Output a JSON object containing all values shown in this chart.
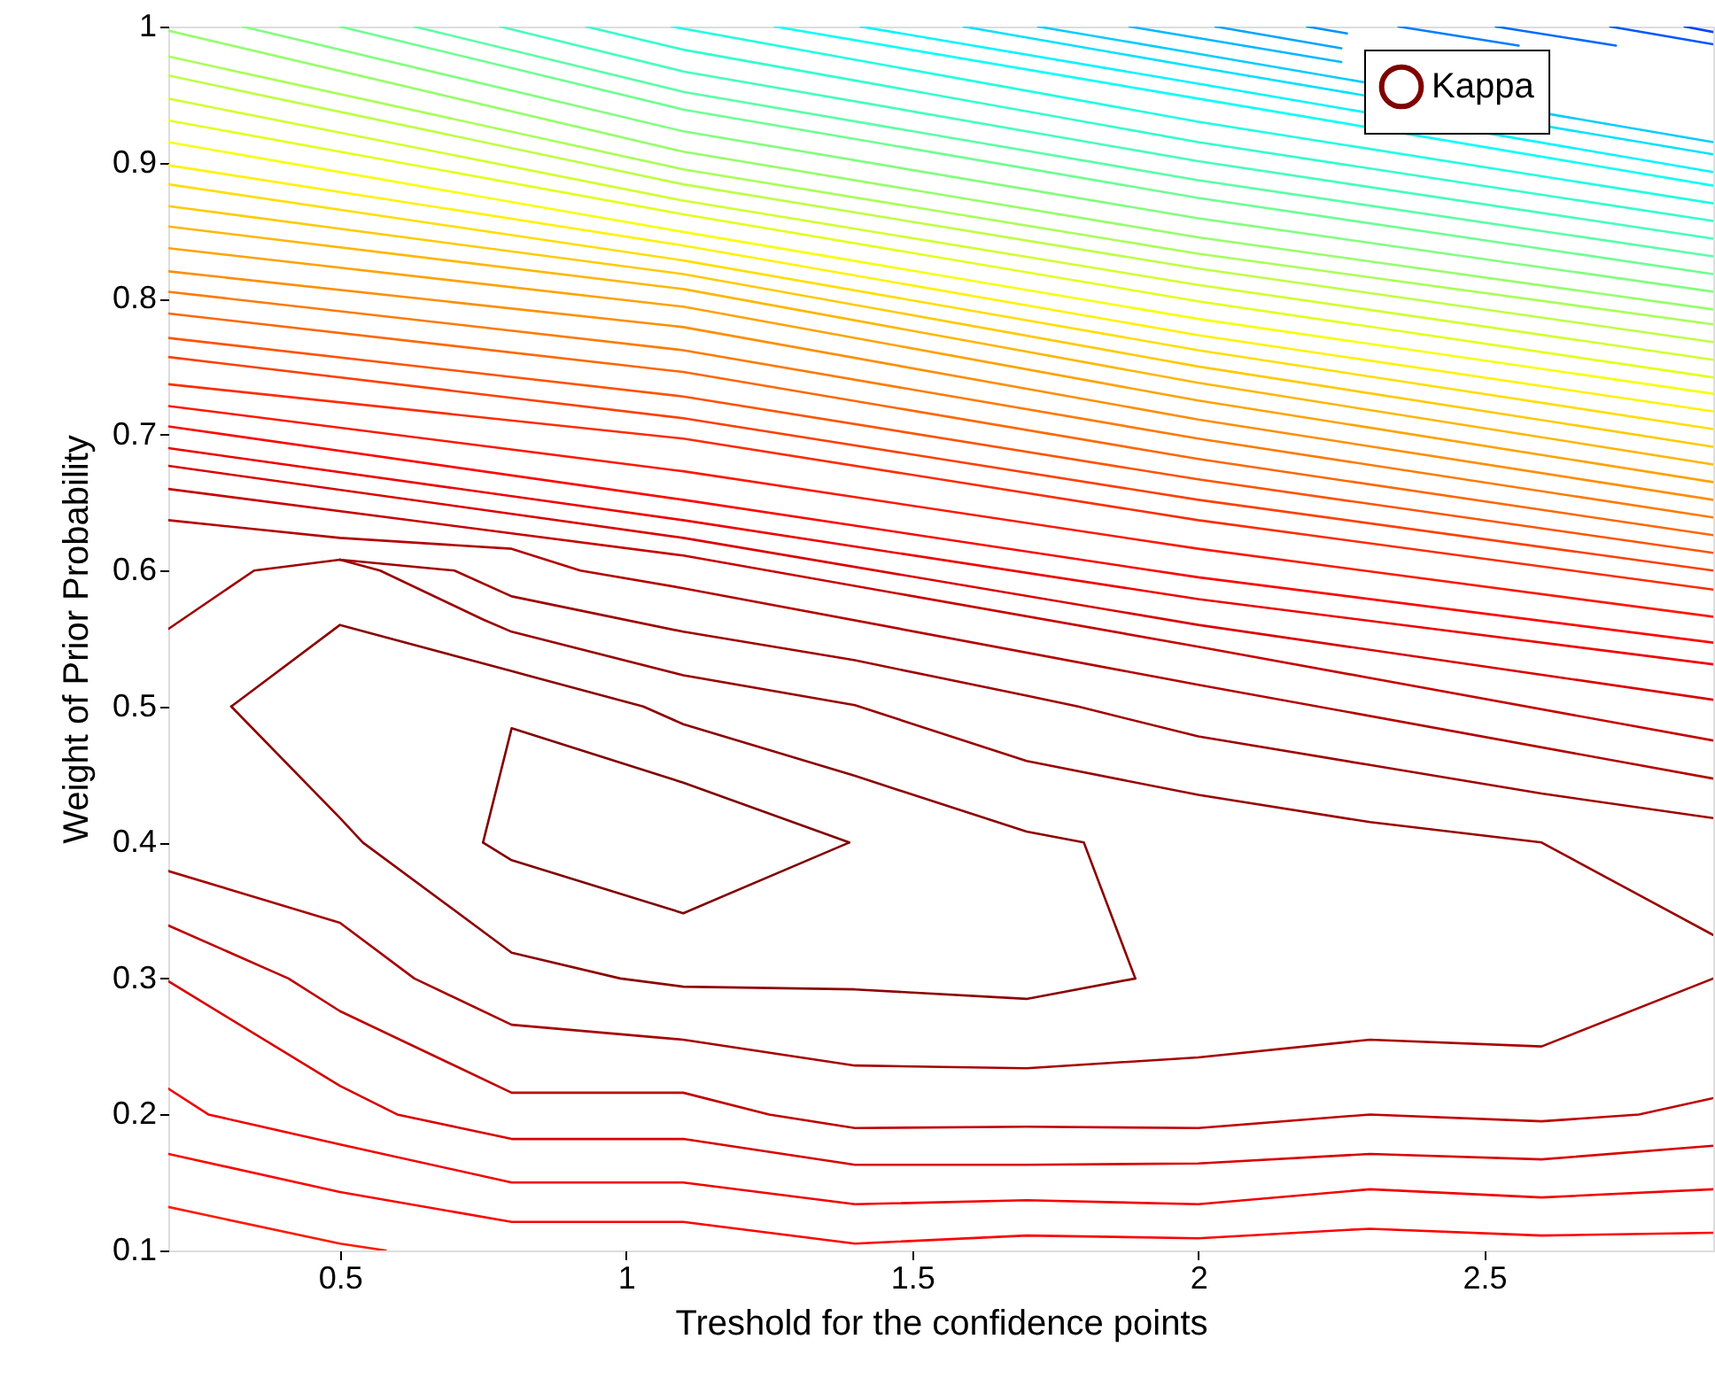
{
  "chart_data": {
    "type": "line",
    "xlabel": "Treshold for the confidence points",
    "ylabel": "Weight of Prior Probability",
    "xlim": [
      0.2,
      2.9
    ],
    "xticks": [
      0.5,
      1,
      1.5,
      2,
      2.5
    ],
    "ylim": [
      0.1,
      1
    ],
    "yticks": [
      0.1,
      0.2,
      0.3,
      0.4,
      0.5,
      0.6,
      0.7,
      0.8,
      0.9,
      1
    ],
    "legend": "top right",
    "line_style": "solid",
    "series": [
      {
        "color": "#ff1a00",
        "x": [
          0.2,
          0.5,
          0.58
        ],
        "values": [
          0.132,
          0.105,
          0.1
        ]
      },
      {
        "color": "#ff0000",
        "x": [
          0.2,
          0.5,
          0.8,
          1.1,
          1.4,
          1.7,
          2.0,
          2.3,
          2.6,
          2.9
        ],
        "values": [
          0.171,
          0.143,
          0.121,
          0.121,
          0.105,
          0.111,
          0.109,
          0.116,
          0.111,
          0.113
        ]
      },
      {
        "color": "#f20000",
        "x": [
          0.2,
          0.27,
          0.5,
          0.8,
          1.1,
          1.4,
          1.7,
          2.0,
          2.3,
          2.6,
          2.9
        ],
        "values": [
          0.219,
          0.2,
          0.178,
          0.15,
          0.15,
          0.134,
          0.137,
          0.134,
          0.145,
          0.139,
          0.145
        ]
      },
      {
        "color": "#d90000",
        "x": [
          0.2,
          0.5,
          0.6,
          0.8,
          1.1,
          1.4,
          1.7,
          2.0,
          2.3,
          2.6,
          2.9
        ],
        "values": [
          0.298,
          0.221,
          0.2,
          0.182,
          0.182,
          0.163,
          0.163,
          0.164,
          0.171,
          0.167,
          0.177
        ]
      },
      {
        "color": "#bf0000",
        "x": [
          0.2,
          0.41,
          0.5,
          0.8,
          1.1,
          1.25,
          1.4,
          1.7,
          2.0,
          2.3,
          2.6,
          2.77,
          2.9
        ],
        "values": [
          0.339,
          0.3,
          0.276,
          0.216,
          0.216,
          0.2,
          0.19,
          0.191,
          0.19,
          0.2,
          0.195,
          0.2,
          0.212
        ]
      },
      {
        "color": "#a60000",
        "x": [
          0.2,
          0.5,
          0.63,
          0.8,
          1.1,
          1.4,
          1.7,
          2.0,
          2.3,
          2.6,
          2.9
        ],
        "values": [
          0.379,
          0.341,
          0.3,
          0.266,
          0.255,
          0.236,
          0.234,
          0.242,
          0.255,
          0.25,
          0.3
        ]
      },
      {
        "color": "#8c0000",
        "x": [
          0.31,
          0.5,
          0.8,
          1.03,
          1.1,
          1.4,
          1.7,
          1.8,
          1.89
        ],
        "values": [
          0.5,
          0.56,
          0.526,
          0.5,
          0.487,
          0.449,
          0.408,
          0.4,
          0.3
        ]
      },
      {
        "color": "#8c0000",
        "x": [
          0.31,
          0.5,
          0.54,
          0.8,
          0.99,
          1.1,
          1.4,
          1.7,
          1.89
        ],
        "values": [
          0.5,
          0.418,
          0.4,
          0.319,
          0.3,
          0.294,
          0.292,
          0.285,
          0.3
        ]
      },
      {
        "name": "Kappa",
        "color": "#800000",
        "x": [
          0.75,
          0.8,
          1.1,
          1.39
        ],
        "values": [
          0.4,
          0.484,
          0.444,
          0.4
        ]
      },
      {
        "color": "#800000",
        "x": [
          0.75,
          0.8,
          1.1,
          1.39
        ],
        "values": [
          0.4,
          0.387,
          0.348,
          0.4
        ]
      },
      {
        "color": "#990000",
        "x": [
          0.5,
          0.57,
          0.75,
          0.8,
          1.1,
          1.4,
          1.7,
          2.0,
          2.3,
          2.6,
          2.9
        ],
        "values": [
          0.608,
          0.6,
          0.564,
          0.555,
          0.523,
          0.501,
          0.46,
          0.435,
          0.415,
          0.4,
          0.332
        ]
      },
      {
        "color": "#9f0000",
        "x": [
          0.2,
          0.35,
          0.5,
          0.7,
          0.8,
          1.1,
          1.4,
          1.7,
          1.79,
          2.0,
          2.3,
          2.6,
          2.9
        ],
        "values": [
          0.557,
          0.6,
          0.608,
          0.6,
          0.581,
          0.555,
          0.534,
          0.508,
          0.5,
          0.478,
          0.457,
          0.436,
          0.418
        ]
      },
      {
        "color": "#b30000",
        "x": [
          0.2,
          0.5,
          0.8,
          0.92,
          1.1,
          2.0,
          2.9
        ],
        "values": [
          0.637,
          0.624,
          0.616,
          0.6,
          0.587,
          0.516,
          0.447
        ]
      },
      {
        "color": "#c60000",
        "x": [
          0.2,
          1.1,
          2.0,
          2.9
        ],
        "values": [
          0.66,
          0.611,
          0.544,
          0.475
        ]
      },
      {
        "color": "#da0000",
        "x": [
          0.2,
          1.1,
          2.0,
          2.9
        ],
        "values": [
          0.677,
          0.624,
          0.56,
          0.505
        ]
      },
      {
        "color": "#ee0000",
        "x": [
          0.2,
          1.1,
          2.0,
          2.9
        ],
        "values": [
          0.69,
          0.637,
          0.579,
          0.531
        ]
      },
      {
        "color": "#ff0300",
        "x": [
          0.2,
          1.1,
          2.0,
          2.9
        ],
        "values": [
          0.706,
          0.652,
          0.595,
          0.547
        ]
      },
      {
        "color": "#ff1700",
        "x": [
          0.2,
          1.1,
          2.0,
          2.9
        ],
        "values": [
          0.721,
          0.673,
          0.616,
          0.566
        ]
      },
      {
        "color": "#ff2b00",
        "x": [
          0.2,
          1.1,
          2.0,
          2.9
        ],
        "values": [
          0.737,
          0.697,
          0.637,
          0.586
        ]
      },
      {
        "color": "#ff3f00",
        "x": [
          0.2,
          1.1,
          2.0,
          2.9
        ],
        "values": [
          0.757,
          0.712,
          0.652,
          0.6
        ]
      },
      {
        "color": "#ff5300",
        "x": [
          0.2,
          1.1,
          2.0,
          2.9
        ],
        "values": [
          0.771,
          0.728,
          0.667,
          0.613
        ]
      },
      {
        "color": "#ff6700",
        "x": [
          0.2,
          1.1,
          2.0,
          2.9
        ],
        "values": [
          0.789,
          0.746,
          0.682,
          0.626
        ]
      },
      {
        "color": "#ff7a00",
        "x": [
          0.2,
          1.1,
          2.0,
          2.9
        ],
        "values": [
          0.805,
          0.762,
          0.697,
          0.639
        ]
      },
      {
        "color": "#ff8e00",
        "x": [
          0.2,
          1.1,
          2.0,
          2.9
        ],
        "values": [
          0.82,
          0.779,
          0.711,
          0.652
        ]
      },
      {
        "color": "#ffa200",
        "x": [
          0.2,
          1.1,
          2.0,
          2.9
        ],
        "values": [
          0.837,
          0.794,
          0.725,
          0.665
        ]
      },
      {
        "color": "#ffb600",
        "x": [
          0.2,
          1.1,
          2.0,
          2.9
        ],
        "values": [
          0.853,
          0.807,
          0.738,
          0.678
        ]
      },
      {
        "color": "#ffca00",
        "x": [
          0.2,
          1.1,
          2.0,
          2.9
        ],
        "values": [
          0.868,
          0.818,
          0.75,
          0.691
        ]
      },
      {
        "color": "#ffde00",
        "x": [
          0.2,
          1.1,
          2.0,
          2.9
        ],
        "values": [
          0.884,
          0.828,
          0.762,
          0.704
        ]
      },
      {
        "color": "#fff200",
        "x": [
          0.2,
          1.1,
          2.0,
          2.9
        ],
        "values": [
          0.898,
          0.839,
          0.773,
          0.717
        ]
      },
      {
        "color": "#f8ff07",
        "x": [
          0.2,
          1.1,
          2.0,
          2.9
        ],
        "values": [
          0.915,
          0.849,
          0.785,
          0.73
        ]
      },
      {
        "color": "#e4ff1b",
        "x": [
          0.2,
          1.1,
          2.0,
          2.9
        ],
        "values": [
          0.931,
          0.862,
          0.798,
          0.742
        ]
      },
      {
        "color": "#d1ff2e",
        "x": [
          0.2,
          1.1,
          2.0,
          2.9
        ],
        "values": [
          0.947,
          0.872,
          0.81,
          0.755
        ]
      },
      {
        "color": "#bdff42",
        "x": [
          0.2,
          1.1,
          2.0,
          2.9
        ],
        "values": [
          0.964,
          0.884,
          0.822,
          0.768
        ]
      },
      {
        "color": "#a9ff56",
        "x": [
          0.2,
          1.1,
          2.0,
          2.9
        ],
        "values": [
          0.978,
          0.895,
          0.833,
          0.781
        ]
      },
      {
        "color": "#95ff6a",
        "x": [
          0.2,
          1.1,
          2.0,
          2.9
        ],
        "values": [
          0.997,
          0.908,
          0.845,
          0.792
        ]
      },
      {
        "color": "#81ff7e",
        "x": [
          0.33,
          1.1,
          2.0,
          2.9
        ],
        "values": [
          1.0,
          0.923,
          0.859,
          0.805
        ]
      },
      {
        "color": "#6dff92",
        "x": [
          0.5,
          1.1,
          2.0,
          2.9
        ],
        "values": [
          1.0,
          0.939,
          0.874,
          0.818
        ]
      },
      {
        "color": "#59ffa6",
        "x": [
          0.63,
          1.1,
          2.0,
          2.9
        ],
        "values": [
          1.0,
          0.952,
          0.887,
          0.831
        ]
      },
      {
        "color": "#45ffba",
        "x": [
          0.78,
          1.1,
          2.0,
          2.9
        ],
        "values": [
          1.0,
          0.967,
          0.901,
          0.844
        ]
      },
      {
        "color": "#31ffce",
        "x": [
          0.93,
          1.1,
          2.0,
          2.9
        ],
        "values": [
          1.0,
          0.983,
          0.915,
          0.857
        ]
      },
      {
        "color": "#1effe1",
        "x": [
          1.08,
          2.0,
          2.9
        ],
        "values": [
          1.0,
          0.93,
          0.87
        ]
      },
      {
        "color": "#0afff5",
        "x": [
          1.26,
          2.0,
          2.9
        ],
        "values": [
          1.0,
          0.947,
          0.883
        ]
      },
      {
        "color": "#00f5ff",
        "x": [
          1.41,
          2.0,
          2.9
        ],
        "values": [
          1.0,
          0.958,
          0.893
        ]
      },
      {
        "color": "#00e1ff",
        "x": [
          1.59,
          2.0,
          2.9
        ],
        "values": [
          1.0,
          0.97,
          0.906
        ]
      },
      {
        "color": "#00cdff",
        "x": [
          1.72,
          2.0,
          2.9
        ],
        "values": [
          1.0,
          0.98,
          0.915
        ]
      },
      {
        "color": "#00b9ff",
        "x": [
          1.88,
          2.25
        ],
        "values": [
          1.0,
          0.974
        ]
      },
      {
        "color": "#00a5ff",
        "x": [
          2.03,
          2.25
        ],
        "values": [
          1.0,
          0.984
        ]
      },
      {
        "color": "#0091ff",
        "x": [
          2.19,
          2.26
        ],
        "values": [
          1.0,
          0.995
        ]
      },
      {
        "color": "#007dff",
        "x": [
          2.35,
          2.56
        ],
        "values": [
          1.0,
          0.986
        ]
      },
      {
        "color": "#006aff",
        "x": [
          2.52,
          2.73
        ],
        "values": [
          1.0,
          0.986
        ]
      },
      {
        "color": "#0056ff",
        "x": [
          2.72,
          2.9
        ],
        "values": [
          1.0,
          0.987
        ]
      },
      {
        "color": "#0042ff",
        "x": [
          2.85,
          2.9
        ],
        "values": [
          1.0,
          0.996
        ]
      }
    ]
  }
}
